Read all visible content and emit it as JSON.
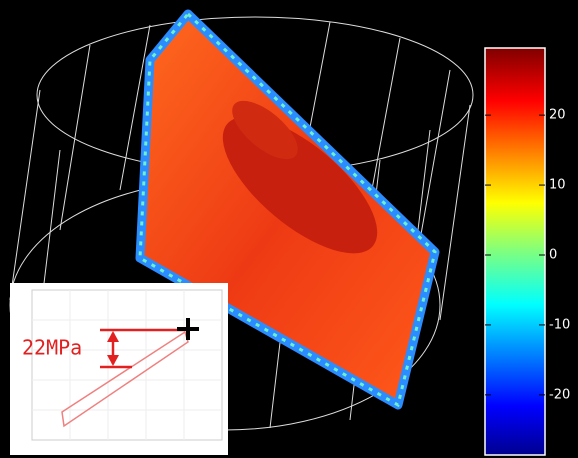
{
  "colorbar": {
    "lim": [
      -28.6,
      29.6
    ],
    "ticks": [
      20,
      10,
      0,
      -10,
      -20
    ]
  },
  "inset": {
    "annotation": "22MPa"
  }
}
